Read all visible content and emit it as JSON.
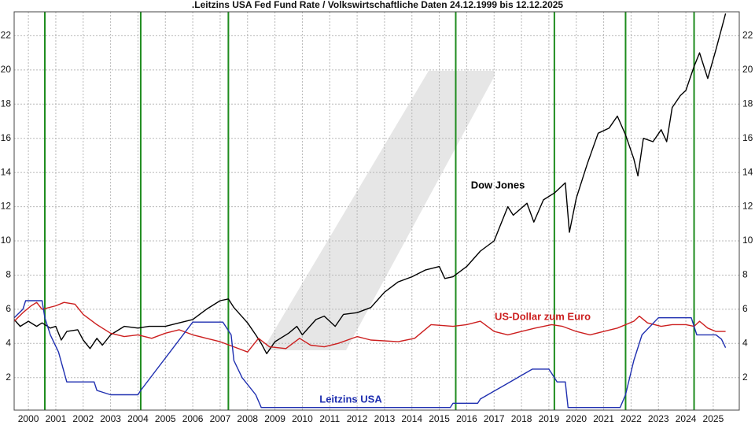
{
  "chart_data": {
    "type": "line",
    "title": ".Leitzins USA Fed Fund Rate / Volkswirtschaftliche Daten 24.12.1999 bis 12.12.2025",
    "xlim": [
      1999.98,
      2026.45
    ],
    "ylim": [
      0.1,
      23.4
    ],
    "yticks": [
      2,
      4,
      6,
      8,
      10,
      12,
      14,
      16,
      18,
      20,
      22
    ],
    "xticks": [
      {
        "value": 2000.5,
        "label": "2000"
      },
      {
        "value": 2001.5,
        "label": "2001"
      },
      {
        "value": 2002.5,
        "label": "2002"
      },
      {
        "value": 2003.5,
        "label": "2003"
      },
      {
        "value": 2004.5,
        "label": "2004"
      },
      {
        "value": 2005.5,
        "label": "2005"
      },
      {
        "value": 2006.5,
        "label": "2006"
      },
      {
        "value": 2007.5,
        "label": "2007"
      },
      {
        "value": 2008.5,
        "label": "2008"
      },
      {
        "value": 2009.5,
        "label": "2009"
      },
      {
        "value": 2010.5,
        "label": "2010"
      },
      {
        "value": 2011.5,
        "label": "2011"
      },
      {
        "value": 2012.5,
        "label": "2012"
      },
      {
        "value": 2013.5,
        "label": "2013"
      },
      {
        "value": 2014.5,
        "label": "2014"
      },
      {
        "value": 2015.5,
        "label": "2015"
      },
      {
        "value": 2016.5,
        "label": "2016"
      },
      {
        "value": 2017.5,
        "label": "2017"
      },
      {
        "value": 2018.5,
        "label": "2018"
      },
      {
        "value": 2019.5,
        "label": "2019"
      },
      {
        "value": 2020.5,
        "label": "2020"
      },
      {
        "value": 2021.5,
        "label": "2021"
      },
      {
        "value": 2022.5,
        "label": "2022"
      },
      {
        "value": 2023.5,
        "label": "2023"
      },
      {
        "value": 2024.5,
        "label": "2024"
      },
      {
        "value": 2025.5,
        "label": "2025"
      }
    ],
    "grid": true,
    "vlines": [
      2001.1,
      2004.6,
      2007.8,
      2016.1,
      2019.7,
      2022.3,
      2024.8
    ],
    "vline_color": "#1e8c1e",
    "series": [
      {
        "name": "Dow Jones",
        "color": "#000000",
        "x": [
          1999.98,
          2000.2,
          2000.5,
          2000.8,
          2001.0,
          2001.3,
          2001.5,
          2001.7,
          2001.9,
          2002.3,
          2002.5,
          2002.75,
          2003.0,
          2003.2,
          2003.5,
          2004.0,
          2004.5,
          2004.9,
          2005.5,
          2006.0,
          2006.5,
          2007.0,
          2007.5,
          2007.8,
          2008.0,
          2008.5,
          2008.8,
          2009.0,
          2009.2,
          2009.5,
          2010.0,
          2010.3,
          2010.5,
          2011.0,
          2011.3,
          2011.7,
          2012.0,
          2012.5,
          2013.0,
          2013.5,
          2014.0,
          2014.5,
          2015.0,
          2015.5,
          2015.7,
          2016.0,
          2016.5,
          2017.0,
          2017.5,
          2018.0,
          2018.2,
          2018.7,
          2018.95,
          2019.3,
          2019.7,
          2020.1,
          2020.25,
          2020.5,
          2020.9,
          2021.3,
          2021.7,
          2022.0,
          2022.3,
          2022.6,
          2022.75,
          2022.95,
          2023.3,
          2023.6,
          2023.8,
          2024.0,
          2024.3,
          2024.5,
          2024.8,
          2025.0,
          2025.3,
          2025.6,
          2025.95
        ],
        "values": [
          5.4,
          5.0,
          5.3,
          5.0,
          5.2,
          4.9,
          5.0,
          4.2,
          4.7,
          4.8,
          4.2,
          3.7,
          4.3,
          3.9,
          4.5,
          5.0,
          4.9,
          5.0,
          5.0,
          5.2,
          5.4,
          6.0,
          6.5,
          6.6,
          6.1,
          5.2,
          4.5,
          4.0,
          3.4,
          4.1,
          4.6,
          5.0,
          4.5,
          5.4,
          5.6,
          5.0,
          5.7,
          5.8,
          6.1,
          7.0,
          7.6,
          7.9,
          8.3,
          8.5,
          7.8,
          7.9,
          8.5,
          9.4,
          10.0,
          12.0,
          11.5,
          12.2,
          11.1,
          12.4,
          12.8,
          13.4,
          10.5,
          12.5,
          14.5,
          16.3,
          16.6,
          17.3,
          16.2,
          14.8,
          13.8,
          16.0,
          15.8,
          16.5,
          15.8,
          17.8,
          18.5,
          18.8,
          20.2,
          21.0,
          19.5,
          21.2,
          23.3
        ]
      },
      {
        "name": "US-Dollar zum Euro",
        "color": "#cc1f1f",
        "x": [
          1999.98,
          2000.3,
          2000.6,
          2000.8,
          2001.0,
          2001.5,
          2001.8,
          2002.2,
          2002.5,
          2003.0,
          2003.5,
          2004.0,
          2004.5,
          2005.0,
          2005.5,
          2006.0,
          2006.5,
          2007.0,
          2007.5,
          2008.0,
          2008.5,
          2008.9,
          2009.3,
          2009.9,
          2010.4,
          2010.8,
          2011.3,
          2011.8,
          2012.5,
          2013.0,
          2014.0,
          2014.6,
          2015.2,
          2016.0,
          2016.5,
          2017.0,
          2017.5,
          2018.0,
          2018.5,
          2019.0,
          2019.6,
          2020.0,
          2020.5,
          2021.0,
          2021.5,
          2022.0,
          2022.6,
          2022.8,
          2023.1,
          2023.6,
          2024.0,
          2024.5,
          2024.8,
          2025.0,
          2025.3,
          2025.6,
          2025.95
        ],
        "values": [
          5.3,
          5.8,
          6.2,
          6.4,
          6.0,
          6.2,
          6.4,
          6.3,
          5.7,
          5.1,
          4.6,
          4.4,
          4.5,
          4.3,
          4.6,
          4.8,
          4.5,
          4.3,
          4.1,
          3.8,
          3.5,
          4.3,
          3.8,
          3.7,
          4.3,
          3.9,
          3.8,
          4.0,
          4.4,
          4.2,
          4.1,
          4.3,
          5.1,
          5.0,
          5.1,
          5.3,
          4.7,
          4.5,
          4.7,
          4.9,
          5.1,
          5.0,
          4.7,
          4.5,
          4.7,
          4.9,
          5.3,
          5.6,
          5.2,
          5.0,
          5.1,
          5.1,
          5.0,
          5.3,
          4.9,
          4.7,
          4.7
        ]
      },
      {
        "name": "Leitzins USA",
        "color": "#1f2fb0",
        "x": [
          1999.98,
          2000.3,
          2000.4,
          2001.0,
          2001.1,
          2001.3,
          2001.6,
          2001.9,
          2002.9,
          2003.0,
          2003.5,
          2004.5,
          2004.6,
          2006.5,
          2007.6,
          2007.9,
          2008.0,
          2008.3,
          2008.8,
          2009.0,
          2015.9,
          2016.0,
          2016.9,
          2017.0,
          2018.9,
          2019.5,
          2019.6,
          2019.8,
          2020.1,
          2020.2,
          2022.1,
          2022.3,
          2022.6,
          2022.9,
          2023.5,
          2024.7,
          2024.8,
          2024.9,
          2025.6,
          2025.8,
          2025.95
        ],
        "values": [
          5.5,
          6.0,
          6.5,
          6.5,
          5.5,
          4.5,
          3.5,
          1.75,
          1.75,
          1.25,
          1.0,
          1.0,
          1.25,
          5.25,
          5.25,
          4.5,
          3.0,
          2.0,
          1.0,
          0.25,
          0.25,
          0.5,
          0.5,
          0.75,
          2.5,
          2.5,
          2.25,
          1.75,
          1.75,
          0.25,
          0.25,
          1.0,
          3.0,
          4.5,
          5.5,
          5.5,
          5.0,
          4.5,
          4.5,
          4.25,
          3.75
        ]
      }
    ]
  }
}
